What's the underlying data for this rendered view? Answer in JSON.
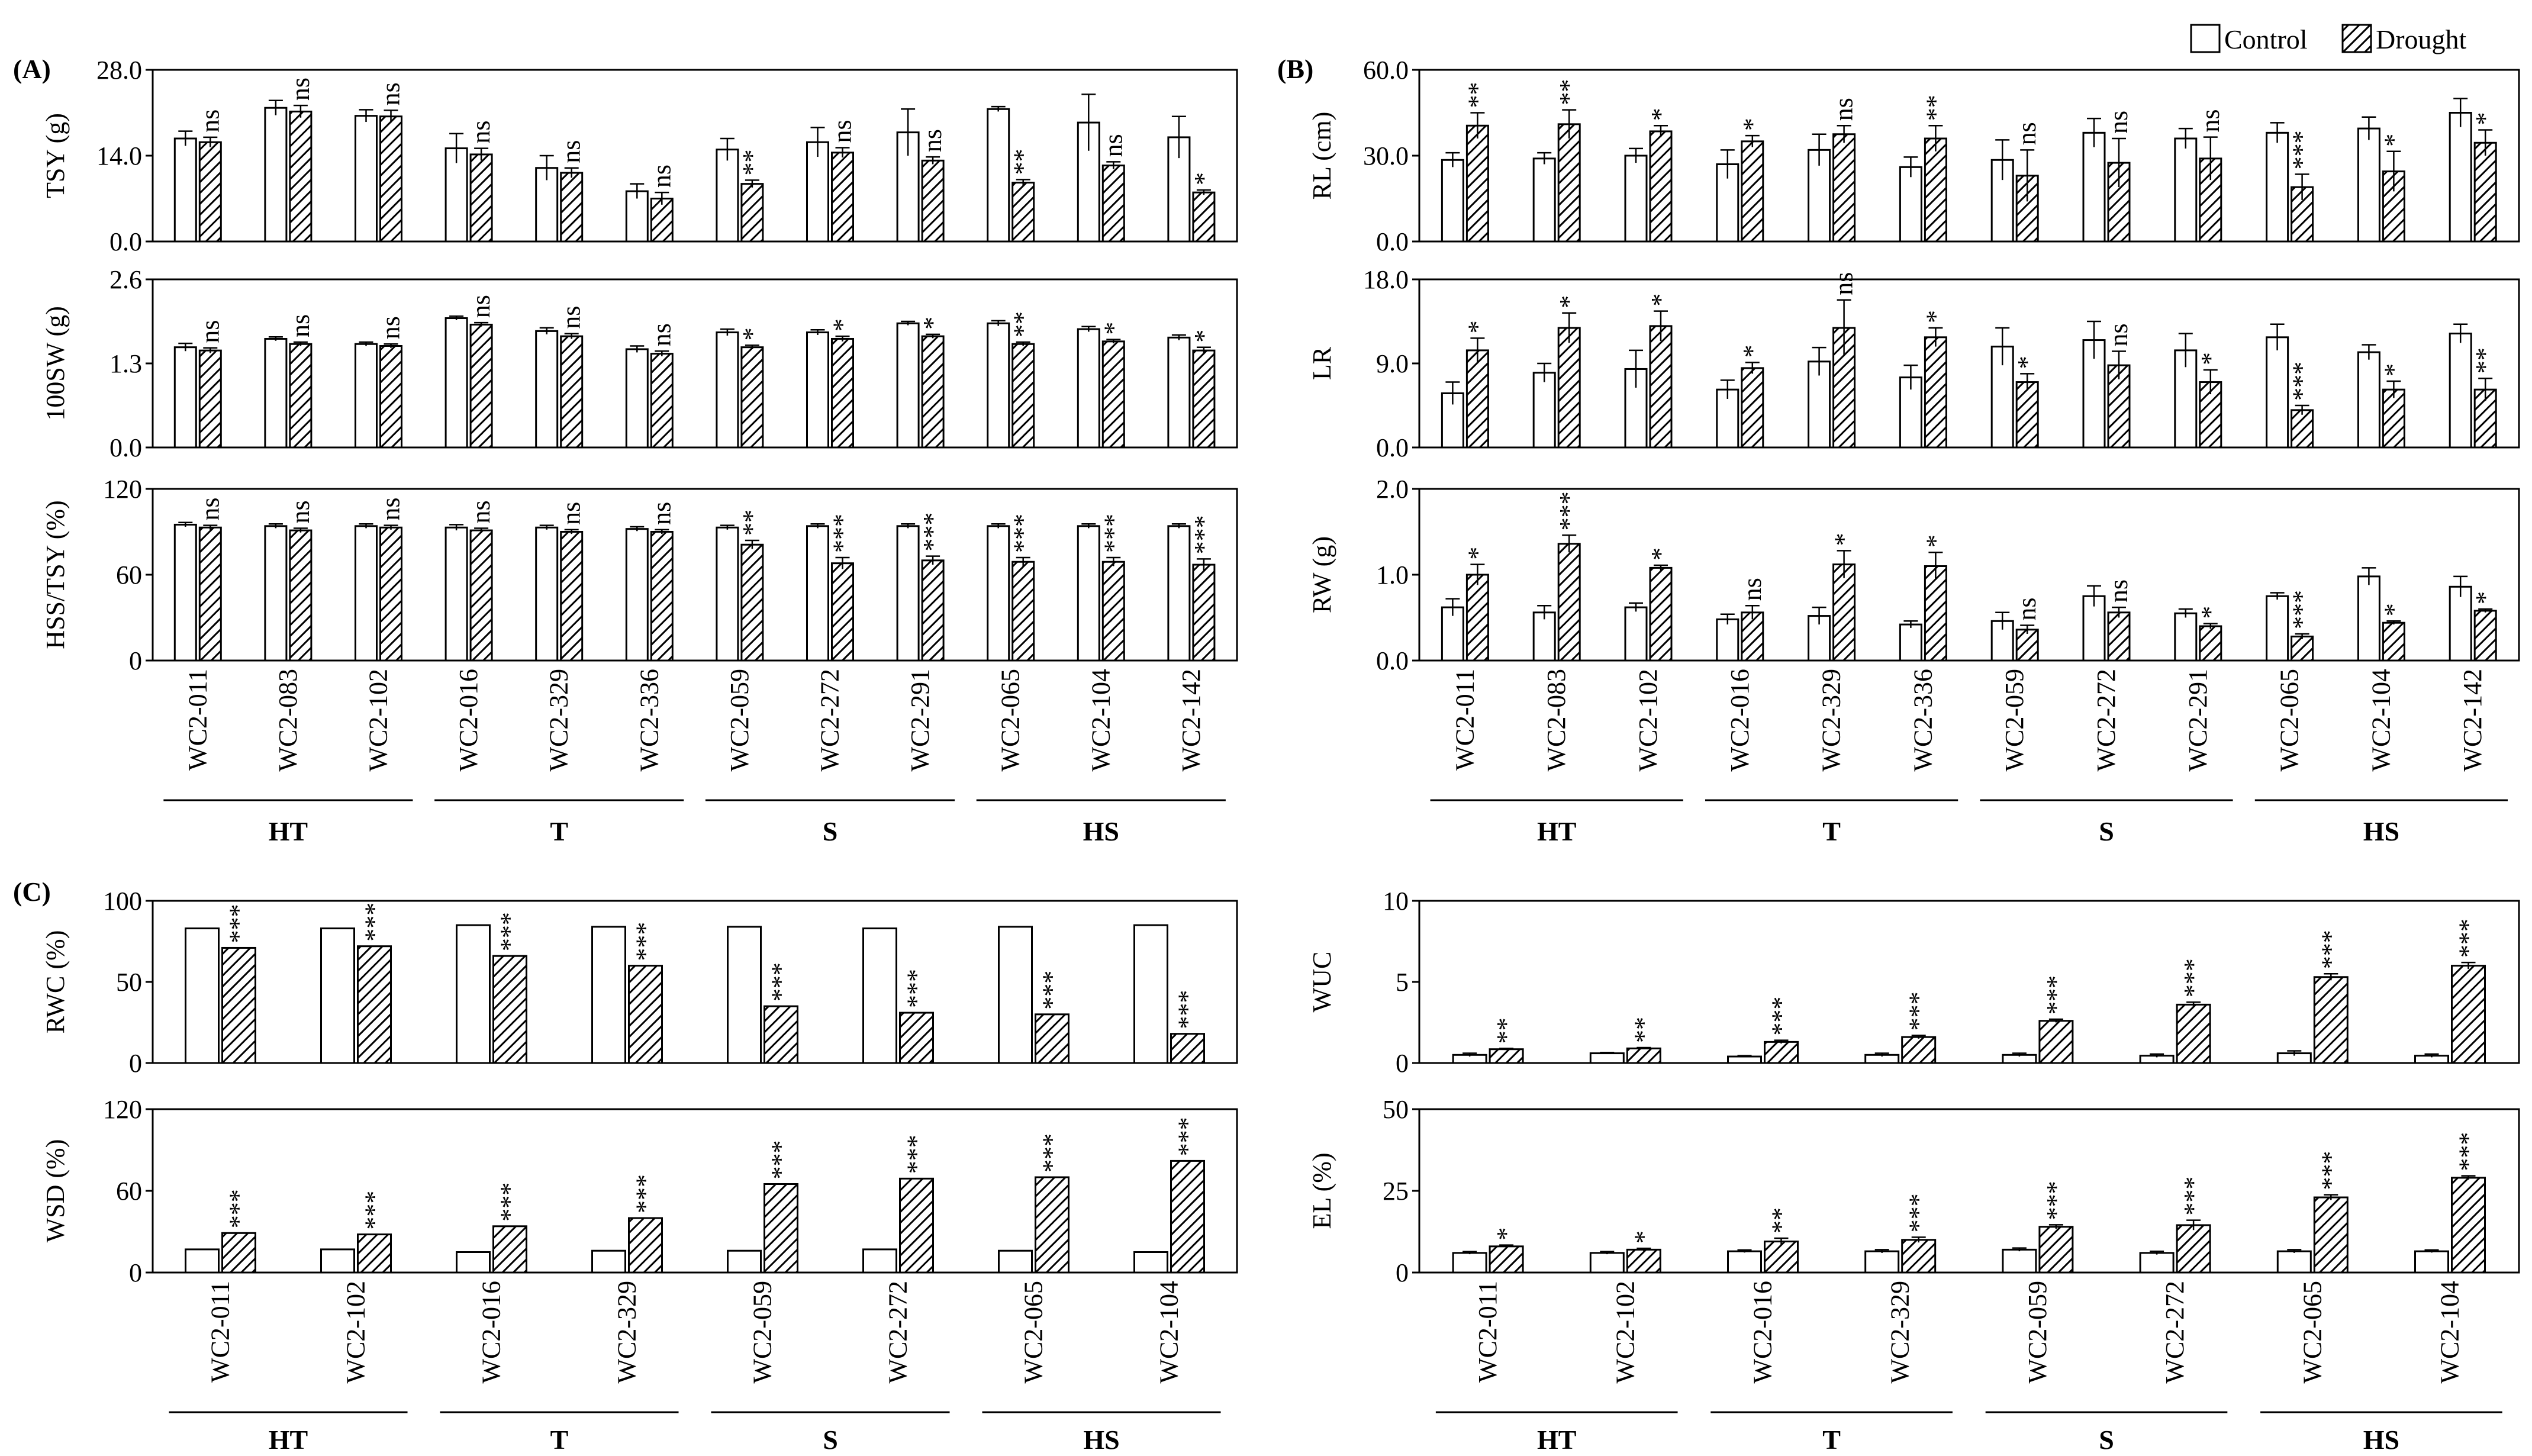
{
  "figure": {
    "legend": [
      {
        "label": "Control",
        "style": "open"
      },
      {
        "label": "Drought",
        "style": "hatched"
      }
    ],
    "panel_labels": [
      "(A)",
      "(B)",
      "(C)"
    ]
  },
  "chart_data": [
    {
      "type": "bar",
      "id": "TSY",
      "ylabel": "TSY (g)",
      "ylim": [
        0,
        28
      ],
      "ticks": [
        "0.0",
        "14.0",
        "28.0"
      ],
      "categories": [
        "WC2-011",
        "WC2-083",
        "WC2-102",
        "WC2-016",
        "WC2-329",
        "WC2-336",
        "WC2-059",
        "WC2-272",
        "WC2-291",
        "WC2-065",
        "WC2-104",
        "WC2-142"
      ],
      "series": [
        {
          "name": "Control",
          "values": [
            16.8,
            21.8,
            20.5,
            15.2,
            12.0,
            8.2,
            15.0,
            16.2,
            17.8,
            21.6,
            19.4,
            17.0
          ],
          "errors": [
            1.2,
            1.2,
            1.0,
            2.4,
            2.0,
            1.2,
            1.8,
            2.4,
            3.8,
            0.4,
            4.6,
            3.4
          ]
        },
        {
          "name": "Drought",
          "values": [
            16.2,
            21.2,
            20.4,
            14.2,
            11.2,
            7.0,
            9.4,
            14.5,
            13.2,
            9.6,
            12.4,
            8.0
          ],
          "errors": [
            0.8,
            1.0,
            1.0,
            1.0,
            0.8,
            1.0,
            0.6,
            0.8,
            0.6,
            0.5,
            0.6,
            0.4
          ]
        }
      ],
      "significance": [
        "ns",
        "ns",
        "ns",
        "ns",
        "ns",
        "ns",
        "**",
        "ns",
        "ns",
        "**",
        "ns",
        "*"
      ]
    },
    {
      "type": "bar",
      "id": "100SW",
      "ylabel": "100SW (g)",
      "ylim": [
        0,
        2.6
      ],
      "ticks": [
        "0.0",
        "1.3",
        "2.6"
      ],
      "categories": [
        "WC2-011",
        "WC2-083",
        "WC2-102",
        "WC2-016",
        "WC2-329",
        "WC2-336",
        "WC2-059",
        "WC2-272",
        "WC2-291",
        "WC2-065",
        "WC2-104",
        "WC2-142"
      ],
      "series": [
        {
          "name": "Control",
          "values": [
            1.55,
            1.68,
            1.6,
            2.0,
            1.8,
            1.52,
            1.78,
            1.78,
            1.92,
            1.92,
            1.83,
            1.7
          ],
          "errors": [
            0.06,
            0.03,
            0.03,
            0.03,
            0.05,
            0.05,
            0.05,
            0.04,
            0.03,
            0.04,
            0.04,
            0.04
          ]
        },
        {
          "name": "Drought",
          "values": [
            1.5,
            1.6,
            1.57,
            1.9,
            1.72,
            1.45,
            1.55,
            1.68,
            1.72,
            1.6,
            1.64,
            1.5
          ],
          "errors": [
            0.04,
            0.03,
            0.03,
            0.03,
            0.04,
            0.04,
            0.03,
            0.04,
            0.03,
            0.03,
            0.03,
            0.05
          ]
        }
      ],
      "significance": [
        "ns",
        "ns",
        "ns",
        "ns",
        "ns",
        "ns",
        "*",
        "*",
        "*",
        "**",
        "*",
        "*"
      ]
    },
    {
      "type": "bar",
      "id": "HSS/TSY",
      "ylabel": "HSS/TSY (%)",
      "ylim": [
        0,
        120
      ],
      "ticks": [
        "0",
        "60",
        "120"
      ],
      "categories": [
        "WC2-011",
        "WC2-083",
        "WC2-102",
        "WC2-016",
        "WC2-329",
        "WC2-336",
        "WC2-059",
        "WC2-272",
        "WC2-291",
        "WC2-065",
        "WC2-104",
        "WC2-142"
      ],
      "series": [
        {
          "name": "Control",
          "values": [
            95,
            94,
            94,
            93,
            93,
            92,
            93,
            94,
            94,
            94,
            94,
            94
          ],
          "errors": [
            1.5,
            1.5,
            1.5,
            2,
            1.5,
            1.5,
            1.5,
            1.5,
            1.5,
            1.5,
            1.5,
            1.5
          ]
        },
        {
          "name": "Drought",
          "values": [
            93,
            91,
            93,
            91,
            90,
            90,
            81,
            68,
            70,
            69,
            69,
            67
          ],
          "errors": [
            1.5,
            1.5,
            1.5,
            1.5,
            1.5,
            1.5,
            3,
            4,
            3,
            3,
            3,
            4
          ]
        }
      ],
      "significance": [
        "ns",
        "ns",
        "ns",
        "ns",
        "ns",
        "ns",
        "**",
        "***",
        "***",
        "***",
        "***",
        "***"
      ]
    },
    {
      "type": "bar",
      "id": "RL",
      "ylabel": "RL (cm)",
      "ylim": [
        0,
        60
      ],
      "ticks": [
        "0.0",
        "30.0",
        "60.0"
      ],
      "categories": [
        "WC2-011",
        "WC2-083",
        "WC2-102",
        "WC2-016",
        "WC2-329",
        "WC2-336",
        "WC2-059",
        "WC2-272",
        "WC2-291",
        "WC2-065",
        "WC2-104",
        "WC2-142"
      ],
      "series": [
        {
          "name": "Control",
          "values": [
            28.5,
            29.0,
            30.0,
            27.0,
            32.0,
            26.0,
            28.5,
            38.0,
            36.0,
            38.0,
            39.5,
            45.0
          ],
          "errors": [
            2.5,
            2.0,
            2.5,
            5.0,
            5.5,
            3.5,
            7.0,
            5.0,
            3.5,
            3.5,
            4.0,
            5.0
          ]
        },
        {
          "name": "Drought",
          "values": [
            40.5,
            41.0,
            38.5,
            35.0,
            37.5,
            36.0,
            23.0,
            27.5,
            29.0,
            19.0,
            24.5,
            34.5
          ],
          "errors": [
            4.5,
            5.0,
            2.0,
            2.0,
            3.0,
            4.5,
            9.0,
            8.5,
            7.5,
            4.5,
            7.0,
            4.5
          ]
        }
      ],
      "significance": [
        "**",
        "**",
        "*",
        "*",
        "ns",
        "**",
        "ns",
        "ns",
        "ns",
        "***",
        "*",
        "*"
      ]
    },
    {
      "type": "bar",
      "id": "LR",
      "ylabel": "LR",
      "ylim": [
        0,
        18
      ],
      "ticks": [
        "0.0",
        "9.0",
        "18.0"
      ],
      "categories": [
        "WC2-011",
        "WC2-083",
        "WC2-102",
        "WC2-016",
        "WC2-329",
        "WC2-336",
        "WC2-059",
        "WC2-272",
        "WC2-291",
        "WC2-065",
        "WC2-104",
        "WC2-142"
      ],
      "series": [
        {
          "name": "Control",
          "values": [
            5.8,
            8.0,
            8.4,
            6.2,
            9.2,
            7.5,
            10.8,
            11.5,
            10.4,
            11.8,
            10.2,
            12.2
          ],
          "errors": [
            1.2,
            1.0,
            2.0,
            1.0,
            1.5,
            1.3,
            2.0,
            2.0,
            1.8,
            1.4,
            0.8,
            1.0
          ]
        },
        {
          "name": "Drought",
          "values": [
            10.4,
            12.8,
            13.0,
            8.5,
            12.8,
            11.8,
            7.0,
            8.8,
            7.0,
            4.0,
            6.2,
            6.2
          ],
          "errors": [
            1.3,
            1.6,
            1.6,
            0.6,
            3.0,
            1.0,
            0.9,
            1.5,
            1.3,
            0.5,
            0.9,
            1.2
          ]
        }
      ],
      "significance": [
        "*",
        "*",
        "*",
        "*",
        "ns",
        "*",
        "*",
        "ns",
        "*",
        "***",
        "*",
        "**"
      ]
    },
    {
      "type": "bar",
      "id": "RW",
      "ylabel": "RW (g)",
      "ylim": [
        0,
        2.0
      ],
      "ticks": [
        "0.0",
        "1.0",
        "2.0"
      ],
      "categories": [
        "WC2-011",
        "WC2-083",
        "WC2-102",
        "WC2-016",
        "WC2-329",
        "WC2-336",
        "WC2-059",
        "WC2-272",
        "WC2-291",
        "WC2-065",
        "WC2-104",
        "WC2-142"
      ],
      "series": [
        {
          "name": "Control",
          "values": [
            0.62,
            0.56,
            0.62,
            0.48,
            0.52,
            0.42,
            0.46,
            0.75,
            0.55,
            0.75,
            0.98,
            0.86
          ],
          "errors": [
            0.1,
            0.08,
            0.05,
            0.06,
            0.1,
            0.04,
            0.1,
            0.12,
            0.05,
            0.04,
            0.1,
            0.12
          ]
        },
        {
          "name": "Drought",
          "values": [
            1.0,
            1.36,
            1.08,
            0.56,
            1.12,
            1.1,
            0.36,
            0.56,
            0.4,
            0.28,
            0.44,
            0.58
          ],
          "errors": [
            0.12,
            0.1,
            0.03,
            0.08,
            0.16,
            0.16,
            0.05,
            0.06,
            0.03,
            0.03,
            0.02,
            0.02
          ]
        }
      ],
      "significance": [
        "*",
        "***",
        "*",
        "ns",
        "*",
        "*",
        "ns",
        "ns",
        "*",
        "***",
        "*",
        "*"
      ]
    },
    {
      "type": "bar",
      "id": "RWC",
      "ylabel": "RWC (%)",
      "ylim": [
        0,
        100
      ],
      "ticks": [
        "0",
        "50",
        "100"
      ],
      "categories": [
        "WC2-011",
        "WC2-102",
        "WC2-016",
        "WC2-329",
        "WC2-059",
        "WC2-272",
        "WC2-065",
        "WC2-104"
      ],
      "series": [
        {
          "name": "Control",
          "values": [
            83,
            83,
            85,
            84,
            84,
            83,
            84,
            85
          ],
          "errors": [
            0,
            0,
            0,
            0,
            0,
            0,
            0,
            0
          ]
        },
        {
          "name": "Drought",
          "values": [
            71,
            72,
            66,
            60,
            35,
            31,
            30,
            18
          ],
          "errors": [
            0,
            0,
            0,
            0,
            0,
            0,
            0,
            0
          ]
        }
      ],
      "significance": [
        "***",
        "***",
        "***",
        "***",
        "***",
        "***",
        "***",
        "***"
      ]
    },
    {
      "type": "bar",
      "id": "WSD",
      "ylabel": "WSD (%)",
      "ylim": [
        0,
        120
      ],
      "ticks": [
        "0",
        "60",
        "120"
      ],
      "categories": [
        "WC2-011",
        "WC2-102",
        "WC2-016",
        "WC2-329",
        "WC2-059",
        "WC2-272",
        "WC2-065",
        "WC2-104"
      ],
      "series": [
        {
          "name": "Control",
          "values": [
            17,
            17,
            15,
            16,
            16,
            17,
            16,
            15
          ],
          "errors": [
            0,
            0,
            0,
            0,
            0,
            0,
            0,
            0
          ]
        },
        {
          "name": "Drought",
          "values": [
            29,
            28,
            34,
            40,
            65,
            69,
            70,
            82
          ],
          "errors": [
            0,
            0,
            0,
            0,
            0,
            0,
            0,
            0
          ]
        }
      ],
      "significance": [
        "***",
        "***",
        "***",
        "***",
        "***",
        "***",
        "***",
        "***"
      ]
    },
    {
      "type": "bar",
      "id": "WUC",
      "ylabel": "WUC",
      "ylim": [
        0,
        10
      ],
      "ticks": [
        "0",
        "5",
        "10"
      ],
      "categories": [
        "WC2-011",
        "WC2-102",
        "WC2-016",
        "WC2-329",
        "WC2-059",
        "WC2-272",
        "WC2-065",
        "WC2-104"
      ],
      "series": [
        {
          "name": "Control",
          "values": [
            0.5,
            0.6,
            0.4,
            0.5,
            0.5,
            0.45,
            0.6,
            0.45
          ],
          "errors": [
            0.1,
            0.05,
            0.05,
            0.1,
            0.1,
            0.1,
            0.15,
            0.1
          ]
        },
        {
          "name": "Drought",
          "values": [
            0.85,
            0.9,
            1.3,
            1.6,
            2.6,
            3.6,
            5.3,
            6.0
          ],
          "errors": [
            0.05,
            0.05,
            0.1,
            0.1,
            0.1,
            0.15,
            0.2,
            0.2
          ]
        }
      ],
      "significance": [
        "**",
        "**",
        "***",
        "***",
        "***",
        "***",
        "***",
        "***"
      ]
    },
    {
      "type": "bar",
      "id": "EL",
      "ylabel": "EL (%)",
      "ylim": [
        0,
        50
      ],
      "ticks": [
        "0",
        "25",
        "50"
      ],
      "categories": [
        "WC2-011",
        "WC2-102",
        "WC2-016",
        "WC2-329",
        "WC2-059",
        "WC2-272",
        "WC2-065",
        "WC2-104"
      ],
      "series": [
        {
          "name": "Control",
          "values": [
            6,
            6,
            6.5,
            6.5,
            7,
            6,
            6.5,
            6.5
          ],
          "errors": [
            0.4,
            0.4,
            0.4,
            0.5,
            0.5,
            0.5,
            0.5,
            0.4
          ]
        },
        {
          "name": "Drought",
          "values": [
            8,
            7,
            9.5,
            10,
            14,
            14.5,
            23,
            29
          ],
          "errors": [
            0.4,
            0.4,
            1.0,
            0.8,
            0.6,
            1.5,
            0.8,
            0.6
          ]
        }
      ],
      "significance": [
        "*",
        "*",
        "**",
        "***",
        "***",
        "***",
        "***",
        "***"
      ]
    }
  ],
  "groups": {
    "twelve": [
      "HT",
      "T",
      "S",
      "HS"
    ],
    "eight": [
      "HT",
      "T",
      "S",
      "HS"
    ]
  }
}
